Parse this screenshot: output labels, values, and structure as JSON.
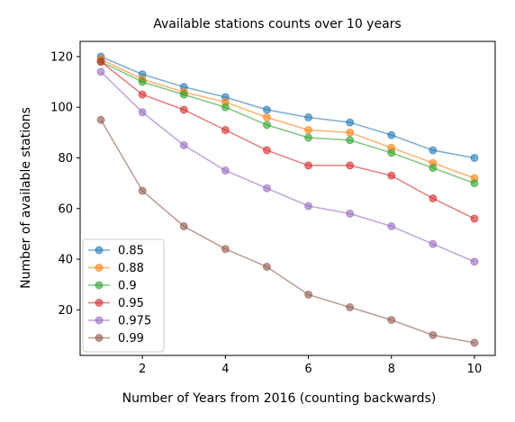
{
  "chart_data": {
    "type": "line",
    "title": "Available stations counts over 10 years",
    "xlabel": "Number of Years from 2016 (counting backwards)",
    "ylabel": "Number of available stations",
    "x": [
      1,
      2,
      3,
      4,
      5,
      6,
      7,
      8,
      9,
      10
    ],
    "xlim": [
      0.5,
      10.5
    ],
    "ylim": [
      2,
      126
    ],
    "xticks": [
      2,
      4,
      6,
      8,
      10
    ],
    "yticks": [
      20,
      40,
      60,
      80,
      100,
      120
    ],
    "grid": false,
    "legend": "lower-left",
    "series": [
      {
        "name": "0.85",
        "color": "#1f77b4",
        "values": [
          120,
          113,
          108,
          104,
          99,
          96,
          94,
          89,
          83,
          80
        ]
      },
      {
        "name": "0.88",
        "color": "#ff7f0e",
        "values": [
          119,
          111,
          106,
          102,
          96,
          91,
          90,
          84,
          78,
          72
        ]
      },
      {
        "name": "0.9",
        "color": "#2ca02c",
        "values": [
          118,
          110,
          105,
          100,
          93,
          88,
          87,
          82,
          76,
          70
        ]
      },
      {
        "name": "0.95",
        "color": "#d62728",
        "values": [
          118,
          105,
          99,
          91,
          83,
          77,
          77,
          73,
          64,
          56
        ]
      },
      {
        "name": "0.975",
        "color": "#9467bd",
        "values": [
          114,
          98,
          85,
          75,
          68,
          61,
          58,
          53,
          46,
          39
        ]
      },
      {
        "name": "0.99",
        "color": "#8c564b",
        "values": [
          95,
          67,
          53,
          44,
          37,
          26,
          21,
          16,
          10,
          7
        ]
      }
    ]
  }
}
